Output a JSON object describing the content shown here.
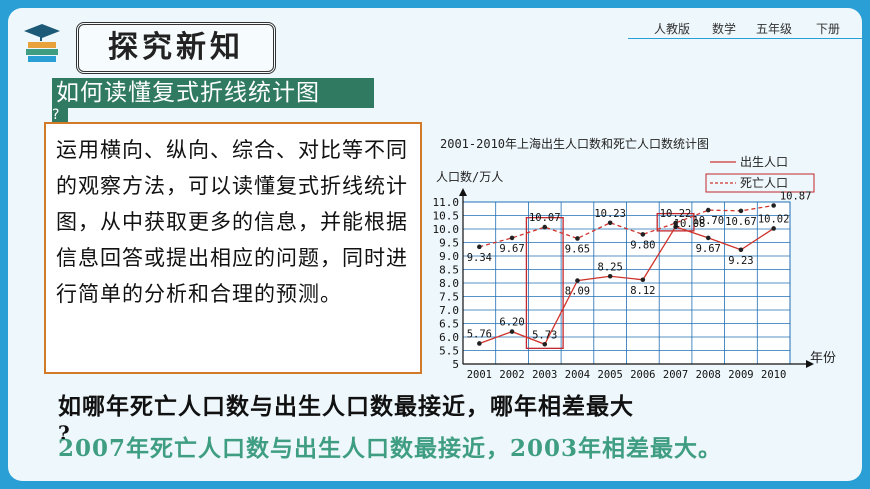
{
  "header": {
    "title": "探究新知",
    "publisher": "人教版",
    "subject": "数学",
    "grade": "五年级",
    "volume": "下册"
  },
  "question_banner": {
    "text": "如何读懂复式折线统计图",
    "tail": "?"
  },
  "method_text": "运用横向、纵向、综合、对比等不同的观察方法，可以读懂复式折线统计图，从中获取更多的信息，并能根据信息回答或提出相应的问题，同时进行简单的分析和合理的预测。",
  "question": {
    "text": "如哪年死亡人口数与出生人口数最接近，哪年相差最大",
    "tail": "?"
  },
  "answer": "2007年死亡人口数与出生人口数最接近，2003年相差最大。",
  "chart_data": {
    "type": "line",
    "title": "2001-2010年上海出生人口数和死亡人口数统计图",
    "ylabel": "人口数/万人",
    "xlabel": "年份",
    "categories": [
      "2001",
      "2002",
      "2003",
      "2004",
      "2005",
      "2006",
      "2007",
      "2008",
      "2009",
      "2010"
    ],
    "y_ticks": [
      "5",
      "5.5",
      "6.0",
      "6.5",
      "7.0",
      "7.5",
      "8.0",
      "8.5",
      "9.0",
      "9.5",
      "10.0",
      "10.5",
      "11.0"
    ],
    "ylim": [
      5,
      11
    ],
    "grid": true,
    "legend_position": "top-right",
    "series": [
      {
        "name": "出生人口",
        "style": "solid",
        "color": "#d0342c",
        "values": [
          5.76,
          6.2,
          5.73,
          8.09,
          8.25,
          8.12,
          10.08,
          9.67,
          9.23,
          10.02
        ],
        "labels": [
          "5.76",
          "6.20",
          "5.73",
          "8.09",
          "8.25",
          "8.12",
          "10.08",
          "9.67",
          "9.23",
          "10.02"
        ]
      },
      {
        "name": "死亡人口",
        "style": "dashed",
        "color": "#d0342c",
        "values": [
          9.34,
          9.67,
          10.07,
          9.65,
          10.23,
          9.8,
          10.22,
          10.7,
          10.67,
          10.87
        ],
        "labels": [
          "9.34",
          "9.67",
          "10.07",
          "9.65",
          "10.23",
          "9.80",
          "10.22",
          "10.70",
          "10.67",
          "10.87"
        ]
      }
    ],
    "highlights": [
      "2003",
      "2007"
    ]
  }
}
